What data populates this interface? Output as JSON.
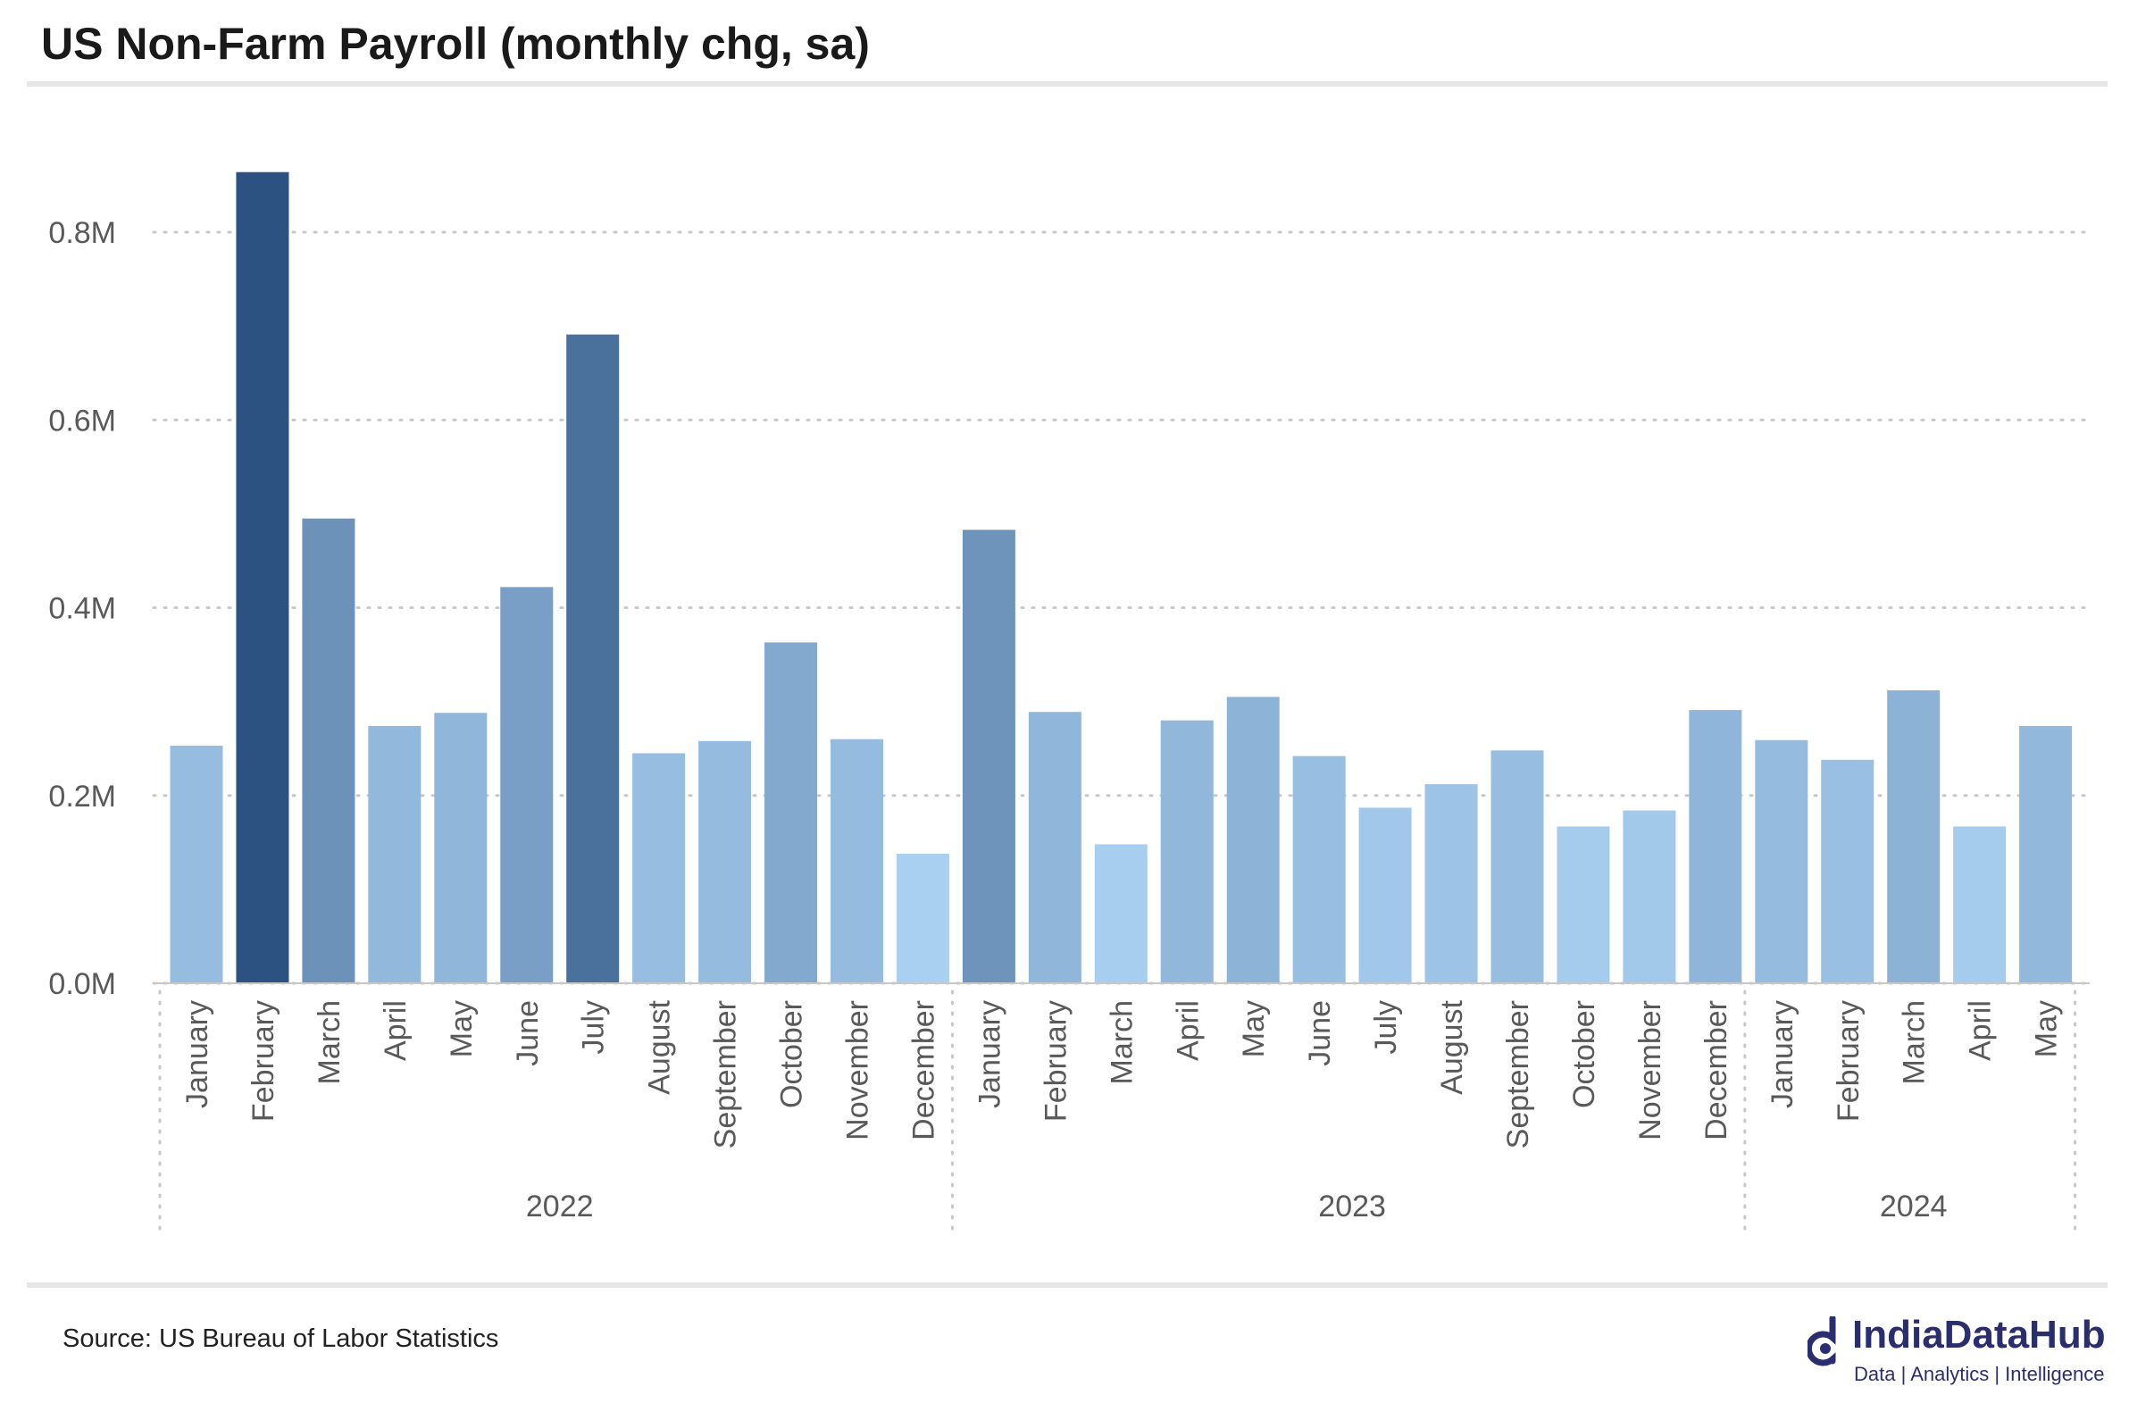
{
  "title": "US Non-Farm Payroll (monthly chg, sa)",
  "source": "Source: US Bureau of Labor Statistics",
  "brand": {
    "name": "IndiaDataHub",
    "tagline": "Data | Analytics | Intelligence",
    "color": "#2b2e6e"
  },
  "colors": {
    "light": "#aad0f1",
    "dark": "#2c5282",
    "grid": "#c8c8c8",
    "axis_text": "#595959"
  },
  "chart_data": {
    "type": "bar",
    "title": "US Non-Farm Payroll (monthly chg, sa)",
    "xlabel": "",
    "ylabel": "",
    "ylim": [
      0,
      0.8
    ],
    "yticks": [
      0.0,
      0.2,
      0.4,
      0.6,
      0.8
    ],
    "ytick_labels": [
      "0.0M",
      "0.2M",
      "0.4M",
      "0.6M",
      "0.8M"
    ],
    "grid": true,
    "unit": "M",
    "groups": [
      {
        "year": "2022",
        "categories": [
          "January",
          "February",
          "March",
          "April",
          "May",
          "June",
          "July",
          "August",
          "September",
          "October",
          "November",
          "December"
        ]
      },
      {
        "year": "2023",
        "categories": [
          "January",
          "February",
          "March",
          "April",
          "May",
          "June",
          "July",
          "August",
          "September",
          "October",
          "November",
          "December"
        ]
      },
      {
        "year": "2024",
        "categories": [
          "January",
          "February",
          "March",
          "April",
          "May"
        ]
      }
    ],
    "values": [
      0.253,
      0.864,
      0.495,
      0.274,
      0.288,
      0.422,
      0.691,
      0.245,
      0.258,
      0.363,
      0.26,
      0.138,
      0.483,
      0.289,
      0.148,
      0.28,
      0.305,
      0.242,
      0.187,
      0.212,
      0.248,
      0.167,
      0.184,
      0.291,
      0.259,
      0.238,
      0.312,
      0.167,
      0.274
    ]
  }
}
